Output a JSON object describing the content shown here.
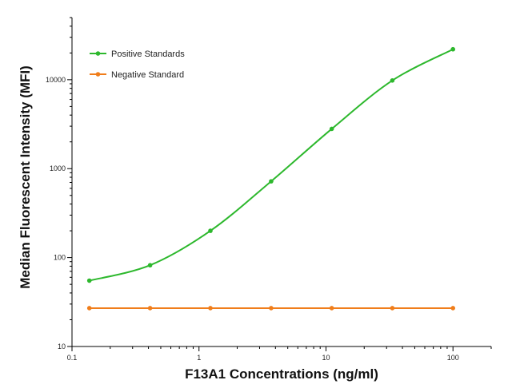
{
  "chart_data": {
    "type": "line",
    "xlabel": "F13A1 Concentrations (ng/ml)",
    "ylabel": "Median  Fluorescent Intensity  (MFI)",
    "xscale": "log",
    "yscale": "log",
    "xlim": [
      0.1,
      200
    ],
    "ylim": [
      10,
      50000
    ],
    "x_ticks": [
      {
        "value": 0.1,
        "label": "0.1"
      },
      {
        "value": 1,
        "label": "1"
      },
      {
        "value": 10,
        "label": "10"
      },
      {
        "value": 100,
        "label": "100"
      }
    ],
    "y_ticks": [
      {
        "value": 10,
        "label": "10"
      },
      {
        "value": 100,
        "label": "100"
      },
      {
        "value": 1000,
        "label": "1000"
      },
      {
        "value": 10000,
        "label": "10000"
      }
    ],
    "grid": false,
    "legend_position": "top-left",
    "series": [
      {
        "name": "Positive Standards",
        "color": "#2db82d",
        "curve": "smooth",
        "x": [
          0.137,
          0.412,
          1.23,
          3.7,
          11.1,
          33.3,
          100
        ],
        "y": [
          55,
          82,
          200,
          720,
          2800,
          9800,
          22000
        ]
      },
      {
        "name": "Negative Standard",
        "color": "#f07d1a",
        "curve": "linear",
        "x": [
          0.137,
          0.412,
          1.23,
          3.7,
          11.1,
          33.3,
          100
        ],
        "y": [
          27,
          27,
          27,
          27,
          27,
          27,
          27
        ]
      }
    ]
  }
}
